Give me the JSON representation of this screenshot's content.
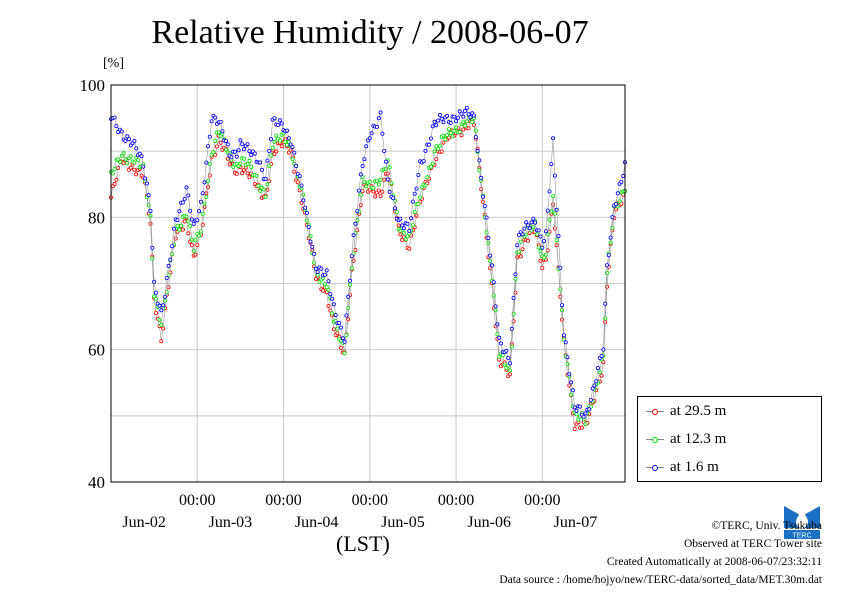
{
  "chart_data": {
    "type": "line",
    "title": "Relative Humidity / 2008-06-07",
    "ylabel": "[%]",
    "xlabel": "(LST)",
    "ylim": [
      40,
      100
    ],
    "yticks": [
      40,
      60,
      80,
      100
    ],
    "y_tick_labels": [
      "40",
      "60",
      "80",
      "100"
    ],
    "xlim_hours": [
      -48,
      0
    ],
    "x_time_labels": [
      "00:00",
      "00:00",
      "00:00",
      "00:00",
      "00:00"
    ],
    "x_date_labels": [
      "Jun-02",
      "Jun-03",
      "Jun-04",
      "Jun-05",
      "Jun-06",
      "Jun-07"
    ],
    "grid": true,
    "legend_position": "bottom-right outside",
    "series": [
      {
        "name": "at 29.5 m",
        "color": "#ff0000",
        "anchors_hours_from_start": [
          0,
          3,
          6,
          9,
          11,
          12,
          14,
          15,
          18,
          21,
          23,
          25,
          28,
          30,
          33,
          35,
          36,
          38,
          41,
          43,
          45,
          48,
          50,
          53,
          57,
          60,
          62,
          65,
          67,
          70,
          72,
          75,
          77,
          80,
          83,
          86,
          90,
          94,
          96,
          99,
          101,
          104,
          106,
          108,
          111,
          113,
          115,
          118,
          120,
          121,
          123,
          126,
          129,
          132,
          134,
          137,
          138,
          140,
          143
        ],
        "values": [
          83,
          88.5,
          88,
          86,
          79,
          68,
          62,
          66,
          77,
          80,
          74,
          77,
          89,
          92,
          88,
          87,
          88,
          87,
          84,
          83,
          90,
          91,
          90,
          83,
          71,
          69,
          63,
          59,
          72,
          84,
          84,
          84,
          87,
          78,
          76,
          82,
          89,
          92,
          93,
          94,
          94,
          80,
          70,
          58,
          56,
          74,
          76,
          78,
          73,
          74,
          82,
          61,
          49,
          48,
          52,
          58,
          70,
          80,
          84
        ]
      },
      {
        "name": "at 12.3 m",
        "color": "#00e000",
        "anchors_hours_from_start": [
          0,
          3,
          6,
          9,
          11,
          12,
          14,
          15,
          18,
          21,
          23,
          25,
          28,
          30,
          33,
          35,
          36,
          38,
          41,
          43,
          45,
          48,
          50,
          53,
          57,
          60,
          62,
          65,
          67,
          70,
          72,
          75,
          77,
          80,
          83,
          86,
          90,
          94,
          96,
          99,
          101,
          104,
          106,
          108,
          111,
          113,
          115,
          118,
          120,
          121,
          123,
          126,
          129,
          132,
          134,
          137,
          138,
          140,
          143
        ],
        "values": [
          86,
          89.5,
          89,
          87,
          80,
          69,
          64,
          67,
          78,
          81,
          75,
          78,
          90,
          93,
          89,
          88,
          89,
          88,
          85,
          84,
          91,
          92,
          91,
          84,
          72,
          70,
          64,
          60,
          73,
          85,
          85,
          86,
          88,
          79,
          77,
          83,
          90,
          92.5,
          93.5,
          94.5,
          94.5,
          81,
          71,
          59,
          57,
          75,
          77,
          79,
          74,
          75,
          83,
          62,
          50,
          49,
          53,
          59,
          71,
          81,
          85
        ]
      },
      {
        "name": "at 1.6 m",
        "color": "#0000ff",
        "anchors_hours_from_start": [
          0,
          3,
          6,
          9,
          11,
          12,
          14,
          15,
          18,
          21,
          23,
          25,
          28,
          30,
          33,
          35,
          36,
          38,
          41,
          43,
          45,
          48,
          50,
          53,
          57,
          60,
          62,
          65,
          67,
          70,
          72,
          75,
          77,
          80,
          83,
          86,
          90,
          94,
          96,
          99,
          101,
          104,
          106,
          108,
          111,
          113,
          115,
          118,
          120,
          121,
          123,
          126,
          129,
          132,
          134,
          137,
          138,
          140,
          143
        ],
        "values": [
          95,
          93,
          91,
          88,
          82,
          70,
          65,
          68,
          80,
          84,
          78,
          82,
          95,
          94,
          90,
          90,
          91,
          90,
          89,
          86,
          94,
          94,
          92,
          84,
          73,
          71,
          66,
          62,
          74,
          88,
          93,
          95,
          85,
          80,
          78,
          88,
          94,
          95,
          95.5,
          95.5,
          95,
          82,
          72,
          61,
          59,
          76,
          78,
          80,
          76,
          77,
          91,
          63,
          51,
          50,
          54,
          60,
          72,
          82,
          88
        ]
      }
    ]
  },
  "footer": {
    "copyright": "©TERC, Univ. Tsukuba",
    "observed": "Observed at TERC Tower site",
    "created": "Created Automatically at 2008-06-07/23:32:11",
    "source": "Data source : /home/hojyo/new/TERC-data/sorted_data/MET.30m.dat",
    "logo_text": "TERC"
  }
}
